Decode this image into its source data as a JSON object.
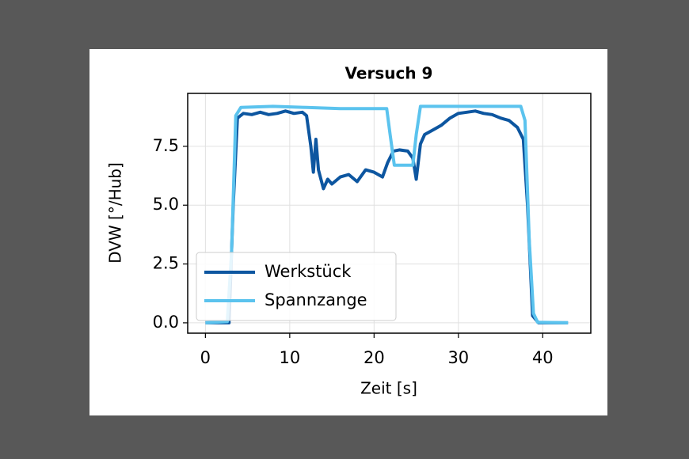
{
  "chart_data": {
    "type": "line",
    "title": "Versuch 9",
    "xlabel": "Zeit [s]",
    "ylabel": "DVW [°/Hub]",
    "xlim": [
      -2.1,
      45.7
    ],
    "ylim": [
      -0.44,
      9.75
    ],
    "xticks": [
      0,
      10,
      20,
      30,
      40
    ],
    "yticks": [
      {
        "value": 0,
        "label": "0.0"
      },
      {
        "value": 2.5,
        "label": "2.5"
      },
      {
        "value": 5,
        "label": "5.0"
      },
      {
        "value": 7.5,
        "label": "7.5"
      }
    ],
    "grid": true,
    "legend": "lower left",
    "series": [
      {
        "name": "Werkstück",
        "color": "#0d56a0",
        "x": [
          0,
          2.8,
          3.3,
          3.8,
          4.5,
          5.5,
          6.5,
          7.5,
          8.5,
          9.5,
          10.5,
          11.5,
          12.0,
          12.5,
          12.8,
          13.1,
          13.4,
          14.0,
          14.5,
          15.0,
          16.0,
          17.0,
          18.0,
          19.0,
          20.0,
          21.0,
          21.6,
          22.3,
          23.0,
          24.0,
          24.6,
          25.0,
          25.5,
          26.0,
          27.0,
          28.0,
          29.0,
          30.0,
          31.0,
          32.0,
          33.0,
          34.0,
          35.0,
          36.0,
          37.0,
          37.7,
          38.2,
          38.8,
          39.5,
          43.0
        ],
        "values": [
          0,
          0,
          5.0,
          8.7,
          8.9,
          8.85,
          8.95,
          8.85,
          8.9,
          9.0,
          8.9,
          8.95,
          8.8,
          7.5,
          6.4,
          7.8,
          6.5,
          5.7,
          6.1,
          5.9,
          6.2,
          6.3,
          6.0,
          6.5,
          6.4,
          6.2,
          6.8,
          7.3,
          7.35,
          7.3,
          7.0,
          6.1,
          7.6,
          8.0,
          8.2,
          8.4,
          8.7,
          8.9,
          8.95,
          9.0,
          8.9,
          8.85,
          8.7,
          8.6,
          8.3,
          7.8,
          5.0,
          0.3,
          0,
          0
        ]
      },
      {
        "name": "Spannzange",
        "color": "#5bc3ee",
        "x": [
          0,
          2.6,
          3.1,
          3.6,
          4.2,
          8.0,
          12.0,
          16.0,
          21.5,
          21.9,
          22.4,
          24.6,
          25.0,
          25.5,
          30.0,
          37.4,
          37.9,
          38.4,
          38.9,
          39.4,
          43.0
        ],
        "values": [
          0,
          0.05,
          3.0,
          8.8,
          9.15,
          9.2,
          9.15,
          9.1,
          9.1,
          8.0,
          6.7,
          6.7,
          8.0,
          9.2,
          9.2,
          9.2,
          8.6,
          3.5,
          0.4,
          0.02,
          0
        ]
      }
    ]
  }
}
